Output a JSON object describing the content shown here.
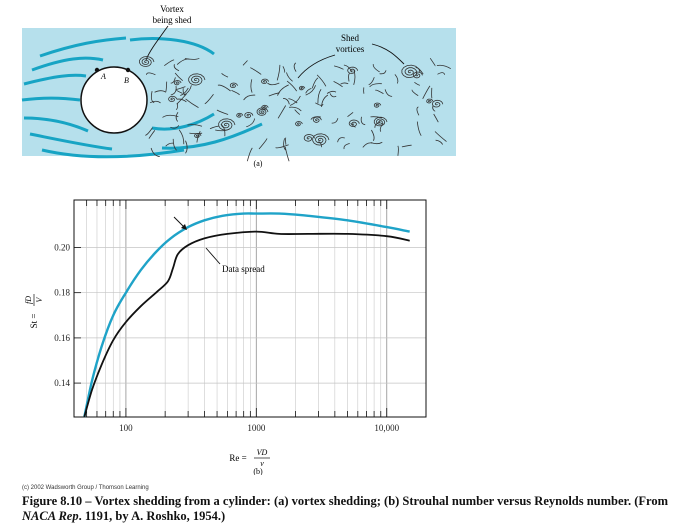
{
  "panel_a": {
    "label": "(a)",
    "vortex_shed_label": [
      "Vortex",
      "being shed"
    ],
    "shed_vortices_label": [
      "Shed",
      "vortices"
    ],
    "point_a": "A",
    "point_b": "B",
    "colors": {
      "fluid_background": "#b6e0ec",
      "streamline": "#17a4c4",
      "vortex_ink": "#333333"
    }
  },
  "panel_b": {
    "label": "(b)",
    "ylabel": "St = fD/V",
    "ylabel_lhs": "St =",
    "ylabel_num": "fD",
    "ylabel_den": "V",
    "xlabel_lhs": "Re =",
    "xlabel_num": "VD",
    "xlabel_den": "ν",
    "annotation": "Data spread"
  },
  "chart_data": {
    "type": "line",
    "title": "",
    "xlabel": "Re = VD/ν",
    "ylabel": "St = fD/V",
    "xscale": "log",
    "xlim": [
      40,
      20000
    ],
    "ylim": [
      0.125,
      0.221
    ],
    "x_ticks": [
      100,
      1000,
      10000
    ],
    "x_tick_labels": [
      "100",
      "1000",
      "10,000"
    ],
    "y_ticks": [
      0.14,
      0.16,
      0.18,
      0.2
    ],
    "y_tick_labels": [
      "0.14",
      "0.16",
      "0.18",
      "0.20"
    ],
    "grid": true,
    "series": [
      {
        "color": "#1fa3c8",
        "x": [
          48,
          55,
          65,
          80,
          100,
          130,
          170,
          220,
          300,
          400,
          550,
          800,
          1000,
          1500,
          2500,
          5000,
          10000,
          15000
        ],
        "y": [
          0.125,
          0.141,
          0.156,
          0.17,
          0.18,
          0.19,
          0.198,
          0.204,
          0.209,
          0.212,
          0.214,
          0.215,
          0.215,
          0.215,
          0.214,
          0.212,
          0.209,
          0.207
        ]
      },
      {
        "color": "#111111",
        "x": [
          48,
          55,
          65,
          80,
          100,
          130,
          170,
          210,
          230,
          250,
          300,
          400,
          600,
          1000,
          1500,
          2500,
          5000,
          10000,
          15000
        ],
        "y": [
          0.125,
          0.137,
          0.148,
          0.159,
          0.167,
          0.174,
          0.18,
          0.185,
          0.191,
          0.197,
          0.201,
          0.204,
          0.206,
          0.207,
          0.206,
          0.206,
          0.206,
          0.205,
          0.203
        ]
      }
    ]
  },
  "copyright": "(c) 2002 Wadsworth Group / Thomson Learning",
  "caption": {
    "part1": "Figure 8.10 – Vortex shedding from a cylinder: (a) vortex shedding; (b) Strouhal number versus Reynolds number. (From ",
    "italic": "NACA Rep",
    "part2": ". 1191, by A. Roshko, 1954.)"
  }
}
